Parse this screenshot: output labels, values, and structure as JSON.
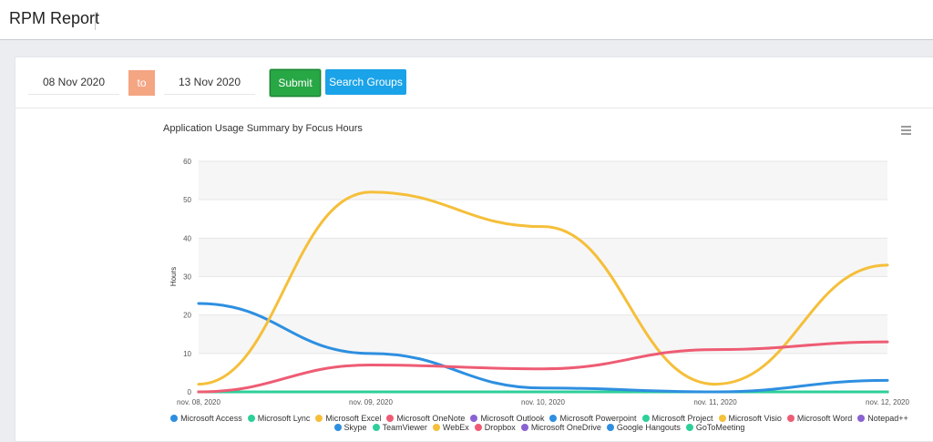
{
  "header": {
    "title": "RPM Report"
  },
  "filters": {
    "from_date": "08 Nov 2020",
    "to_label": "to",
    "to_date": "13 Nov 2020",
    "submit_label": "Submit",
    "search_groups_label": "Search Groups"
  },
  "chart_data": {
    "type": "line",
    "title": "Application Usage Summary by Focus Hours",
    "ylabel": "Hours",
    "xlabel": "",
    "ylim": [
      0,
      60
    ],
    "yticks": [
      0,
      10,
      20,
      30,
      40,
      50,
      60
    ],
    "categories": [
      "nov. 08, 2020",
      "nov. 09, 2020",
      "nov. 10, 2020",
      "nov. 11, 2020",
      "nov. 12, 2020"
    ],
    "grid": true,
    "alternating_bands": true,
    "legend_position": "bottom",
    "menu_icon": "hamburger-icon",
    "series": [
      {
        "name": "Microsoft Access",
        "color": "#2e8fe0",
        "values": [
          23,
          10,
          1,
          0,
          3
        ]
      },
      {
        "name": "Microsoft Lync",
        "color": "#2ecf9a",
        "values": [
          0,
          0,
          0,
          0,
          0
        ]
      },
      {
        "name": "Microsoft Excel",
        "color": "#f5bf3a",
        "values": [
          2,
          52,
          43,
          2,
          33
        ]
      },
      {
        "name": "Microsoft OneNote",
        "color": "#ee5c74",
        "values": [
          0,
          7,
          6,
          11,
          13
        ]
      },
      {
        "name": "Microsoft Outlook",
        "color": "#8a63d2",
        "values": [
          0,
          0,
          0,
          0,
          0
        ]
      },
      {
        "name": "Microsoft Powerpoint",
        "color": "#2e8fe0",
        "values": [
          0,
          0,
          0,
          0,
          0
        ]
      },
      {
        "name": "Microsoft Project",
        "color": "#2ecf9a",
        "values": [
          0,
          0,
          0,
          0,
          0
        ]
      },
      {
        "name": "Microsoft Visio",
        "color": "#f5bf3a",
        "values": [
          0,
          0,
          0,
          0,
          0
        ]
      },
      {
        "name": "Microsoft Word",
        "color": "#ee5c74",
        "values": [
          0,
          0,
          0,
          0,
          0
        ]
      },
      {
        "name": "Notepad++",
        "color": "#8a63d2",
        "values": [
          0,
          0,
          0,
          0,
          0
        ]
      },
      {
        "name": "Skype",
        "color": "#2e8fe0",
        "values": [
          0,
          0,
          0,
          0,
          0
        ]
      },
      {
        "name": "TeamViewer",
        "color": "#2ecf9a",
        "values": [
          0,
          0,
          0,
          0,
          0
        ]
      },
      {
        "name": "WebEx",
        "color": "#f5bf3a",
        "values": [
          0,
          0,
          0,
          0,
          0
        ]
      },
      {
        "name": "Dropbox",
        "color": "#ee5c74",
        "values": [
          0,
          0,
          0,
          0,
          0
        ]
      },
      {
        "name": "Microsoft OneDrive",
        "color": "#8a63d2",
        "values": [
          0,
          0,
          0,
          0,
          0
        ]
      },
      {
        "name": "Google Hangouts",
        "color": "#2e8fe0",
        "values": [
          0,
          0,
          0,
          0,
          0
        ]
      },
      {
        "name": "GoToMeeting",
        "color": "#2ecf9a",
        "values": [
          0,
          0,
          0,
          0,
          0
        ]
      }
    ]
  }
}
